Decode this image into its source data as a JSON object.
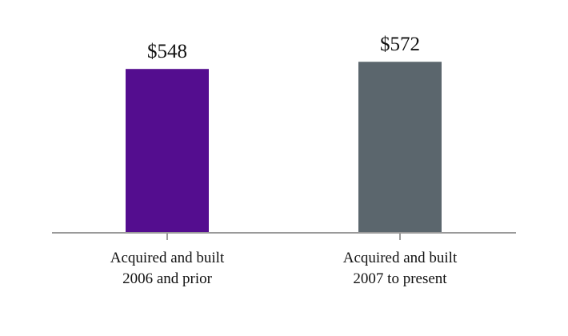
{
  "chart_data": {
    "type": "bar",
    "categories": [
      [
        "Acquired and built",
        "2006 and prior"
      ],
      [
        "Acquired and built",
        "2007 to present"
      ]
    ],
    "values": [
      548,
      572
    ],
    "data_labels": [
      "$548",
      "$572"
    ],
    "colors": [
      "#540d8f",
      "#5b666d"
    ],
    "axis_color": "#9a9a9a",
    "ylim": [
      0,
      650
    ],
    "title": "",
    "xlabel": "",
    "ylabel": "",
    "grid": false,
    "legend": "none"
  }
}
